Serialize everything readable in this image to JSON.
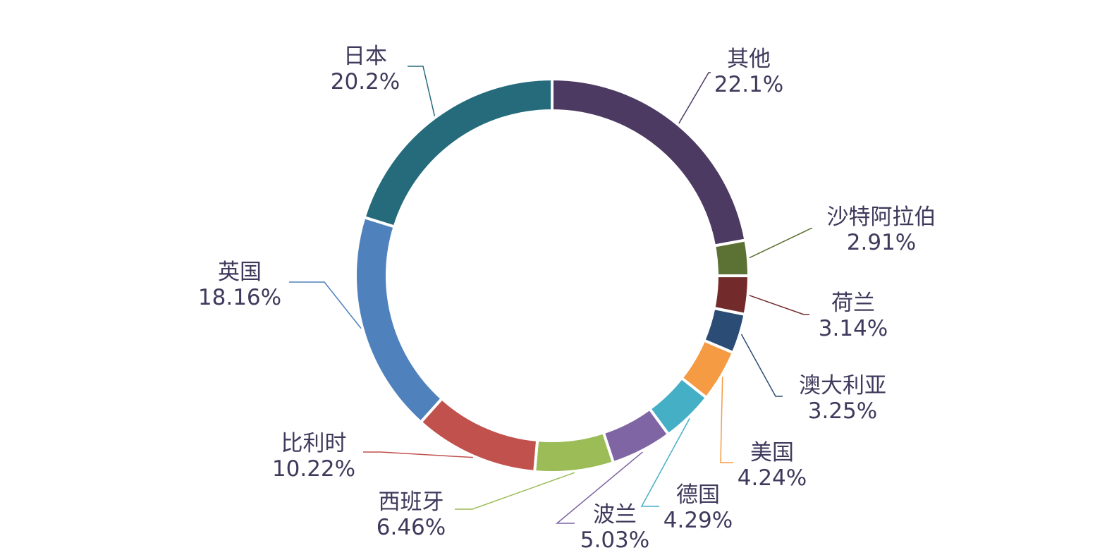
{
  "chart_data": {
    "type": "pie",
    "donut": true,
    "start": "12 o'clock, clockwise",
    "slices": [
      {
        "label": "其他",
        "value": 22.1,
        "value_label": "22.1%",
        "color": "#4c3a62"
      },
      {
        "label": "沙特阿拉伯",
        "value": 2.91,
        "value_label": "2.91%",
        "color": "#5c7134"
      },
      {
        "label": "荷兰",
        "value": 3.14,
        "value_label": "3.14%",
        "color": "#722b2a"
      },
      {
        "label": "澳大利亚",
        "value": 3.25,
        "value_label": "3.25%",
        "color": "#2b4c74"
      },
      {
        "label": "美国",
        "value": 4.24,
        "value_label": "4.24%",
        "color": "#f59b44"
      },
      {
        "label": "德国",
        "value": 4.29,
        "value_label": "4.29%",
        "color": "#45afc5"
      },
      {
        "label": "波兰",
        "value": 5.03,
        "value_label": "5.03%",
        "color": "#7f65a3"
      },
      {
        "label": "西班牙",
        "value": 6.46,
        "value_label": "6.46%",
        "color": "#9bbc57"
      },
      {
        "label": "比利时",
        "value": 10.22,
        "value_label": "10.22%",
        "color": "#c0514d"
      },
      {
        "label": "英国",
        "value": 18.16,
        "value_label": "18.16%",
        "color": "#4f81bc"
      },
      {
        "label": "日本",
        "value": 20.2,
        "value_label": "20.2%",
        "color": "#256b7c"
      }
    ]
  }
}
